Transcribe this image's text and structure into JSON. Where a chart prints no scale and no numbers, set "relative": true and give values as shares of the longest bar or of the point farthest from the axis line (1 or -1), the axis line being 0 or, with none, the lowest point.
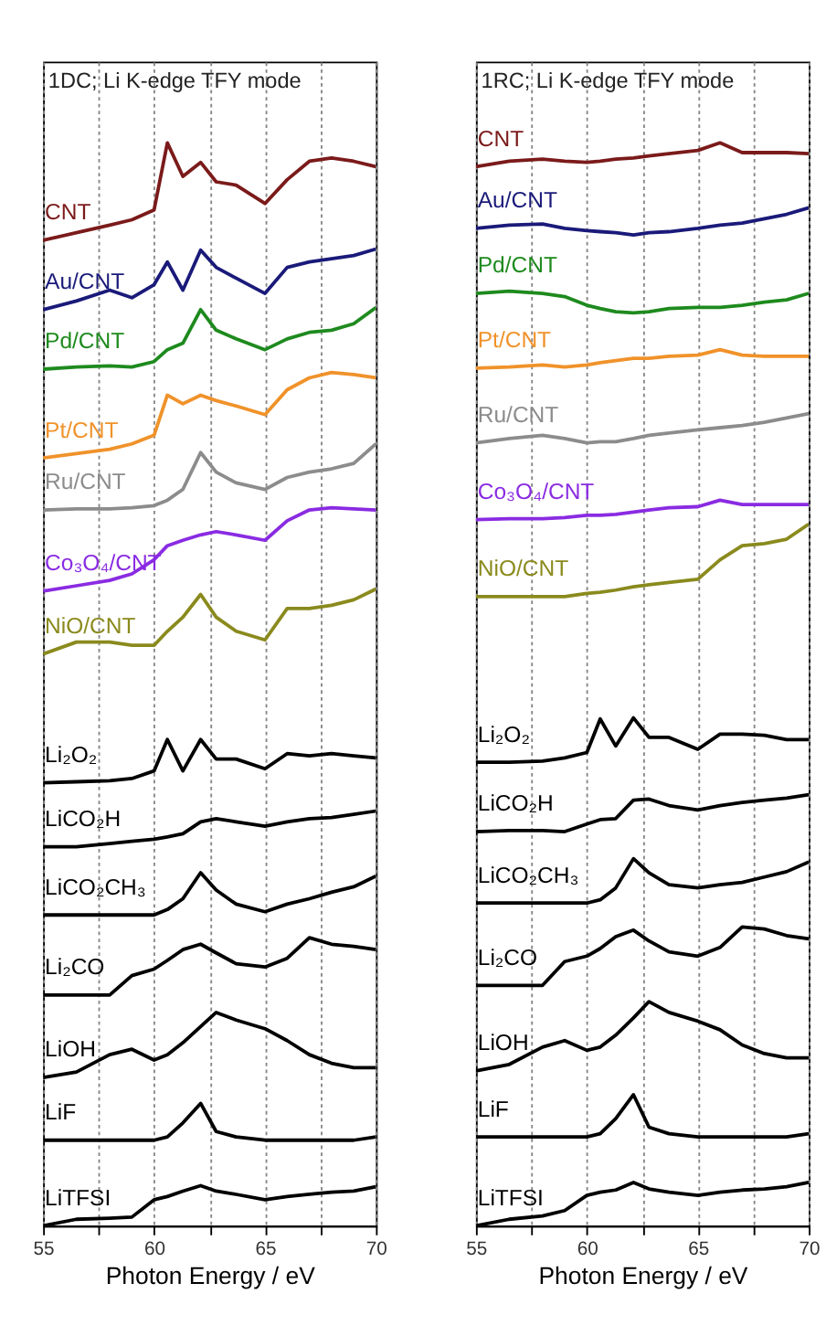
{
  "chart_data": [
    {
      "type": "line",
      "title": "1DC; Li K-edge TFY mode",
      "xlabel": "Photon Energy / eV",
      "relative": true,
      "tick_labels": "x",
      "grid": "x",
      "xlim": [
        55,
        70
      ],
      "xticks": [
        55,
        {
          "value": 57.5,
          "label": null
        },
        60,
        {
          "value": 62.5,
          "label": null
        },
        65,
        {
          "value": 67.5,
          "label": null
        },
        70
      ],
      "x": [
        55,
        56.5,
        58,
        59,
        60,
        60.6,
        61.3,
        62.1,
        62.8,
        63.7,
        65,
        66,
        67,
        68,
        69,
        70
      ],
      "series": [
        {
          "name": "CNT",
          "color": "#7b1a1a",
          "values": [
            0.91,
            0.917,
            0.924,
            0.929,
            0.938,
            1.0,
            0.969,
            0.982,
            0.964,
            0.961,
            0.944,
            0.966,
            0.983,
            0.986,
            0.983,
            0.978
          ]
        },
        {
          "name": "Au/CNT",
          "color": "#1a1a7a",
          "values": [
            0.846,
            0.854,
            0.864,
            0.857,
            0.869,
            0.89,
            0.864,
            0.901,
            0.885,
            0.875,
            0.861,
            0.885,
            0.89,
            0.893,
            0.896,
            0.902
          ]
        },
        {
          "name": "Pd/CNT",
          "color": "#1e8a1e",
          "values": [
            0.791,
            0.793,
            0.794,
            0.793,
            0.798,
            0.809,
            0.815,
            0.846,
            0.827,
            0.819,
            0.809,
            0.819,
            0.825,
            0.827,
            0.833,
            0.848
          ]
        },
        {
          "name": "Pt/CNT",
          "color": "#f0922a",
          "values": [
            0.709,
            0.713,
            0.717,
            0.722,
            0.73,
            0.767,
            0.759,
            0.767,
            0.762,
            0.757,
            0.749,
            0.772,
            0.783,
            0.788,
            0.786,
            0.783
          ]
        },
        {
          "name": "Ru/CNT",
          "color": "#8c8c8c",
          "values": [
            0.661,
            0.662,
            0.662,
            0.663,
            0.665,
            0.67,
            0.68,
            0.714,
            0.696,
            0.686,
            0.68,
            0.691,
            0.696,
            0.699,
            0.704,
            0.722
          ]
        },
        {
          "name": "Co₃O₄/CNT",
          "color": "#8a2be2",
          "values": [
            0.586,
            0.591,
            0.596,
            0.602,
            0.615,
            0.628,
            0.633,
            0.638,
            0.641,
            0.638,
            0.633,
            0.651,
            0.661,
            0.663,
            0.662,
            0.661
          ]
        },
        {
          "name": "NiO/CNT",
          "color": "#8a8a1e",
          "values": [
            0.528,
            0.539,
            0.539,
            0.536,
            0.536,
            0.549,
            0.562,
            0.583,
            0.562,
            0.549,
            0.541,
            0.57,
            0.57,
            0.573,
            0.578,
            0.588
          ]
        },
        {
          "name": "Li₂O₂",
          "color": "#000000",
          "values": [
            0.409,
            0.41,
            0.411,
            0.413,
            0.42,
            0.449,
            0.42,
            0.449,
            0.431,
            0.431,
            0.422,
            0.436,
            0.434,
            0.436,
            0.434,
            0.432
          ]
        },
        {
          "name": "LiCO₂H",
          "color": "#000000",
          "values": [
            0.35,
            0.35,
            0.353,
            0.355,
            0.357,
            0.359,
            0.362,
            0.373,
            0.376,
            0.373,
            0.369,
            0.373,
            0.376,
            0.377,
            0.38,
            0.383
          ]
        },
        {
          "name": "LiCO₂CH₃",
          "color": "#000000",
          "values": [
            0.287,
            0.287,
            0.287,
            0.287,
            0.287,
            0.292,
            0.302,
            0.326,
            0.31,
            0.297,
            0.29,
            0.297,
            0.302,
            0.308,
            0.313,
            0.323
          ]
        },
        {
          "name": "Li₂CO",
          "color": "#000000",
          "values": [
            0.213,
            0.213,
            0.213,
            0.231,
            0.237,
            0.245,
            0.255,
            0.26,
            0.252,
            0.242,
            0.239,
            0.247,
            0.266,
            0.26,
            0.258,
            0.255
          ]
        },
        {
          "name": "LiOH",
          "color": "#000000",
          "values": [
            0.137,
            0.142,
            0.158,
            0.163,
            0.153,
            0.158,
            0.169,
            0.184,
            0.197,
            0.19,
            0.182,
            0.171,
            0.158,
            0.15,
            0.146,
            0.146
          ]
        },
        {
          "name": "LiF",
          "color": "#000000",
          "values": [
            0.079,
            0.079,
            0.079,
            0.079,
            0.079,
            0.082,
            0.095,
            0.113,
            0.087,
            0.082,
            0.079,
            0.079,
            0.079,
            0.079,
            0.079,
            0.082
          ]
        },
        {
          "name": "LiTFSI",
          "color": "#000000",
          "values": [
            0.0,
            0.006,
            0.007,
            0.008,
            0.024,
            0.027,
            0.032,
            0.037,
            0.032,
            0.029,
            0.024,
            0.027,
            0.029,
            0.031,
            0.032,
            0.036
          ]
        }
      ]
    },
    {
      "type": "line",
      "title": "1RC; Li K-edge TFY mode",
      "xlabel": "Photon Energy / eV",
      "relative": true,
      "tick_labels": "x",
      "grid": "x",
      "xlim": [
        55,
        70
      ],
      "xticks": [
        55,
        {
          "value": 57.5,
          "label": null
        },
        60,
        {
          "value": 62.5,
          "label": null
        },
        65,
        {
          "value": 67.5,
          "label": null
        },
        70
      ],
      "x": [
        55,
        56.5,
        58,
        59,
        60,
        60.6,
        61.3,
        62.1,
        62.8,
        63.7,
        65,
        66,
        67,
        68,
        69,
        70
      ],
      "series": [
        {
          "name": "CNT",
          "color": "#7b1a1a",
          "values": [
            0.978,
            0.983,
            0.985,
            0.983,
            0.982,
            0.983,
            0.985,
            0.986,
            0.988,
            0.99,
            0.993,
            1.0,
            0.991,
            0.991,
            0.991,
            0.99
          ]
        },
        {
          "name": "Au/CNT",
          "color": "#1a1a7a",
          "values": [
            0.921,
            0.924,
            0.925,
            0.921,
            0.919,
            0.918,
            0.917,
            0.915,
            0.917,
            0.918,
            0.921,
            0.924,
            0.926,
            0.93,
            0.934,
            0.94
          ]
        },
        {
          "name": "Pd/CNT",
          "color": "#1e8a1e",
          "values": [
            0.861,
            0.863,
            0.861,
            0.858,
            0.85,
            0.847,
            0.844,
            0.843,
            0.844,
            0.847,
            0.848,
            0.848,
            0.85,
            0.853,
            0.855,
            0.861
          ]
        },
        {
          "name": "Pt/CNT",
          "color": "#f0922a",
          "values": [
            0.792,
            0.793,
            0.795,
            0.793,
            0.795,
            0.797,
            0.799,
            0.801,
            0.801,
            0.803,
            0.804,
            0.809,
            0.804,
            0.803,
            0.803,
            0.803
          ]
        },
        {
          "name": "Ru/CNT",
          "color": "#8c8c8c",
          "values": [
            0.723,
            0.727,
            0.73,
            0.727,
            0.723,
            0.724,
            0.724,
            0.727,
            0.73,
            0.732,
            0.735,
            0.737,
            0.739,
            0.742,
            0.746,
            0.75
          ]
        },
        {
          "name": "Co₃O₄/CNT",
          "color": "#8a2be2",
          "values": [
            0.652,
            0.653,
            0.653,
            0.654,
            0.656,
            0.656,
            0.657,
            0.659,
            0.661,
            0.663,
            0.664,
            0.67,
            0.666,
            0.666,
            0.666,
            0.666
          ]
        },
        {
          "name": "NiO/CNT",
          "color": "#8a8a1e",
          "values": [
            0.581,
            0.581,
            0.581,
            0.581,
            0.584,
            0.585,
            0.587,
            0.59,
            0.592,
            0.594,
            0.597,
            0.615,
            0.628,
            0.63,
            0.634,
            0.648
          ]
        },
        {
          "name": "Li₂O₂",
          "color": "#000000",
          "values": [
            0.428,
            0.428,
            0.429,
            0.432,
            0.437,
            0.468,
            0.443,
            0.469,
            0.451,
            0.451,
            0.44,
            0.454,
            0.454,
            0.453,
            0.449,
            0.449
          ]
        },
        {
          "name": "LiCO₂H",
          "color": "#000000",
          "values": [
            0.364,
            0.365,
            0.365,
            0.364,
            0.371,
            0.375,
            0.376,
            0.393,
            0.394,
            0.388,
            0.384,
            0.388,
            0.391,
            0.393,
            0.395,
            0.398
          ]
        },
        {
          "name": "LiCO₂CH₃",
          "color": "#000000",
          "values": [
            0.298,
            0.298,
            0.298,
            0.298,
            0.298,
            0.301,
            0.312,
            0.339,
            0.326,
            0.315,
            0.312,
            0.315,
            0.317,
            0.322,
            0.327,
            0.336
          ]
        },
        {
          "name": "Li₂CO",
          "color": "#000000",
          "values": [
            0.222,
            0.222,
            0.222,
            0.244,
            0.249,
            0.256,
            0.267,
            0.273,
            0.263,
            0.253,
            0.249,
            0.257,
            0.276,
            0.274,
            0.268,
            0.265
          ]
        },
        {
          "name": "LiOH",
          "color": "#000000",
          "values": [
            0.143,
            0.149,
            0.165,
            0.171,
            0.162,
            0.165,
            0.176,
            0.192,
            0.207,
            0.197,
            0.189,
            0.181,
            0.167,
            0.159,
            0.155,
            0.155
          ]
        },
        {
          "name": "LiF",
          "color": "#000000",
          "values": [
            0.082,
            0.082,
            0.082,
            0.082,
            0.082,
            0.085,
            0.099,
            0.121,
            0.091,
            0.085,
            0.082,
            0.082,
            0.082,
            0.082,
            0.082,
            0.085
          ]
        },
        {
          "name": "LiTFSI",
          "color": "#000000",
          "values": [
            0.0,
            0.006,
            0.009,
            0.014,
            0.028,
            0.031,
            0.033,
            0.04,
            0.034,
            0.031,
            0.028,
            0.031,
            0.033,
            0.034,
            0.036,
            0.04
          ]
        }
      ]
    }
  ]
}
